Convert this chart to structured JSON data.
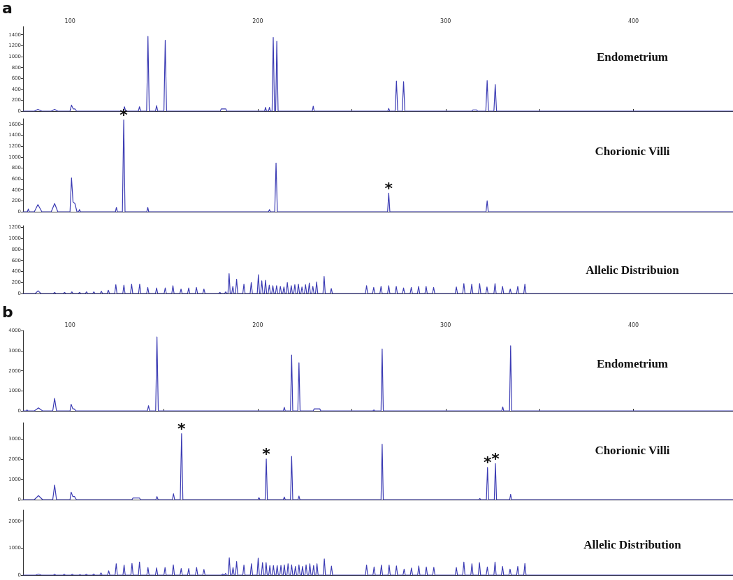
{
  "chart_data": [
    {
      "type": "line",
      "title": "Endometrium",
      "annotations": [
        "a"
      ],
      "color": "#3c3cb4",
      "marker": "none",
      "xlim": [
        75,
        453
      ],
      "xticks": [
        100,
        {
          "value": 150,
          "label": null
        },
        200,
        {
          "value": 250,
          "label": null
        },
        300,
        {
          "value": 350,
          "label": null
        },
        400
      ],
      "ylim": [
        0,
        1550
      ],
      "yticks": [
        0,
        200,
        400,
        600,
        800,
        1000,
        1200,
        1400
      ],
      "x": [
        75,
        81,
        82.9,
        85,
        90,
        91.8,
        93.5,
        100,
        100.8,
        101.7,
        102.6,
        103.5,
        128.4,
        129,
        129.6,
        136.4,
        137,
        137.6,
        140.8,
        141.5,
        142.2,
        145.5,
        146.1,
        146.7,
        150,
        150.7,
        151.4,
        180,
        180.5,
        183,
        183.5,
        203.6,
        204.1,
        204.6,
        205.7,
        206.2,
        206.7,
        207.6,
        208.2,
        208.9,
        209.5,
        210.1,
        210.8,
        229,
        229.5,
        230,
        269.2,
        269.7,
        270.2,
        273.1,
        273.8,
        274.5,
        276.9,
        277.6,
        278.3,
        314,
        314.5,
        316.5,
        317,
        321.4,
        322.1,
        322.8,
        325.7,
        326.4,
        327.1,
        453
      ],
      "values": [
        0,
        0,
        30,
        0,
        0,
        30,
        0,
        0,
        110,
        40,
        40,
        0,
        0,
        80,
        0,
        0,
        80,
        0,
        0,
        1370,
        0,
        0,
        100,
        0,
        0,
        1300,
        0,
        0,
        40,
        40,
        0,
        0,
        70,
        0,
        0,
        70,
        0,
        0,
        1350,
        0,
        0,
        1280,
        0,
        0,
        90,
        0,
        0,
        50,
        0,
        0,
        550,
        0,
        0,
        540,
        0,
        0,
        20,
        20,
        0,
        0,
        560,
        0,
        0,
        490,
        0,
        0
      ]
    },
    {
      "type": "line",
      "title": "Chorionic Villi",
      "color": "#3c3cb4",
      "marker": "none",
      "tick_labels": "y",
      "annotations": [
        {
          "text": "*",
          "x": 128.6,
          "y": 1680
        },
        {
          "text": "*",
          "x": 269.7,
          "y": 340
        }
      ],
      "xlim": [
        75,
        453
      ],
      "ylim": [
        0,
        1700
      ],
      "yticks": [
        0,
        200,
        400,
        600,
        800,
        1000,
        1200,
        1400,
        1600
      ],
      "x": [
        75,
        77.3,
        77.8,
        78.3,
        81,
        82.9,
        85,
        90,
        91.8,
        93.5,
        100,
        100.8,
        101.6,
        102.6,
        103.7,
        104.6,
        105,
        105.6,
        124.2,
        124.7,
        125.2,
        127.9,
        128.6,
        129.3,
        140.9,
        141.4,
        141.9,
        205.7,
        206.2,
        206.7,
        209,
        209.7,
        210.4,
        269.1,
        269.7,
        270.3,
        321.5,
        322.1,
        322.7,
        453
      ],
      "values": [
        0,
        0,
        50,
        0,
        0,
        130,
        0,
        0,
        150,
        0,
        0,
        620,
        180,
        150,
        0,
        0,
        40,
        0,
        0,
        80,
        0,
        0,
        1680,
        0,
        0,
        80,
        0,
        0,
        40,
        0,
        0,
        890,
        0,
        0,
        340,
        0,
        0,
        200,
        0,
        0
      ]
    },
    {
      "type": "line",
      "title": "Allelic Distribuion",
      "color": "#3c3cb4",
      "marker": "none",
      "tick_labels": "y",
      "xlim": [
        75,
        453
      ],
      "ylim": [
        0,
        1230
      ],
      "yticks": [
        0,
        200,
        400,
        600,
        800,
        1000,
        1200
      ],
      "x": [
        75,
        81.5,
        83,
        84.5,
        91.2,
        91.8,
        92.4,
        96.5,
        97.1,
        97.7,
        100.4,
        101,
        101.6,
        104.5,
        105.1,
        105.7,
        108.2,
        108.8,
        109.4,
        112.1,
        112.7,
        113.3,
        116.1,
        116.7,
        117.3,
        119.8,
        120.4,
        121,
        123.8,
        124.4,
        125,
        128.1,
        128.7,
        129.3,
        132.2,
        132.8,
        133.4,
        136.5,
        137.1,
        137.7,
        140.8,
        141.4,
        142,
        145.5,
        146.1,
        146.7,
        150.1,
        150.7,
        151.3,
        154.2,
        154.8,
        155.4,
        158.5,
        159.1,
        159.7,
        162.6,
        163.2,
        163.8,
        166.7,
        167.3,
        167.9,
        170.7,
        171.3,
        171.9,
        179.2,
        179.8,
        180.4,
        182.3,
        182.9,
        183.5,
        184.1,
        184.7,
        185.3,
        186.1,
        186.7,
        187.3,
        188.1,
        188.7,
        189.3,
        192,
        192.6,
        193.2,
        195.9,
        196.5,
        197.1,
        199.7,
        200.3,
        200.9,
        201.5,
        202.1,
        202.7,
        203.5,
        204.1,
        204.7,
        205.5,
        206.1,
        206.7,
        207.4,
        208,
        208.6,
        209.4,
        210,
        210.6,
        211.4,
        212,
        212.6,
        213.3,
        213.9,
        214.5,
        215.1,
        215.7,
        216.3,
        217.2,
        217.8,
        218.4,
        219.1,
        219.7,
        220.3,
        221,
        221.6,
        222.2,
        222.9,
        223.5,
        224.1,
        224.8,
        225.4,
        226,
        226.8,
        227.4,
        228,
        228.7,
        229.3,
        229.9,
        230.7,
        231.3,
        231.9,
        234.7,
        235.3,
        235.9,
        238.5,
        239.1,
        239.7,
        257.3,
        257.9,
        258.5,
        261.1,
        261.7,
        262.3,
        265,
        265.6,
        266.2,
        269.1,
        269.7,
        270.3,
        273.1,
        273.7,
        274.3,
        277,
        277.6,
        278.2,
        281.1,
        281.7,
        282.3,
        285,
        285.6,
        286.2,
        289,
        289.6,
        290.2,
        293,
        293.6,
        294.2,
        305.1,
        305.7,
        306.3,
        309.1,
        309.7,
        310.3,
        313.3,
        313.9,
        314.5,
        317.5,
        318.1,
        318.7,
        321.4,
        322,
        322.6,
        325.7,
        326.3,
        326.9,
        329.7,
        330.3,
        330.9,
        333.8,
        334.4,
        335,
        337.8,
        338.4,
        339,
        341.6,
        342.2,
        342.8,
        453
      ],
      "values": [
        0,
        0,
        50,
        0,
        0,
        20,
        0,
        0,
        20,
        0,
        0,
        30,
        0,
        0,
        20,
        0,
        0,
        30,
        0,
        0,
        30,
        0,
        0,
        40,
        0,
        0,
        60,
        0,
        0,
        160,
        0,
        0,
        150,
        0,
        0,
        170,
        0,
        0,
        170,
        0,
        0,
        110,
        0,
        0,
        100,
        0,
        0,
        100,
        0,
        0,
        140,
        0,
        0,
        80,
        0,
        0,
        100,
        0,
        0,
        110,
        0,
        0,
        80,
        0,
        0,
        20,
        0,
        0,
        30,
        0,
        0,
        360,
        0,
        0,
        130,
        0,
        0,
        260,
        0,
        0,
        170,
        0,
        0,
        200,
        0,
        0,
        340,
        0,
        0,
        230,
        0,
        0,
        240,
        0,
        0,
        150,
        0,
        0,
        140,
        0,
        0,
        140,
        0,
        0,
        130,
        0,
        0,
        120,
        0,
        0,
        200,
        0,
        0,
        140,
        0,
        0,
        160,
        0,
        0,
        170,
        0,
        0,
        120,
        0,
        0,
        160,
        0,
        0,
        190,
        0,
        0,
        130,
        0,
        0,
        210,
        0,
        0,
        310,
        0,
        0,
        90,
        0,
        0,
        140,
        0,
        0,
        110,
        0,
        0,
        130,
        0,
        0,
        140,
        0,
        0,
        130,
        0,
        0,
        100,
        0,
        0,
        110,
        0,
        0,
        130,
        0,
        0,
        130,
        0,
        0,
        110,
        0,
        0,
        120,
        0,
        0,
        180,
        0,
        0,
        170,
        0,
        0,
        180,
        0,
        0,
        120,
        0,
        0,
        180,
        0,
        0,
        130,
        0,
        0,
        80,
        0,
        0,
        130,
        0,
        0,
        170,
        0,
        0
      ]
    },
    {
      "type": "line",
      "title": "Endometrium",
      "annotations": [
        "b"
      ],
      "color": "#3c3cb4",
      "marker": "none",
      "xlim": [
        75,
        453
      ],
      "xticks": [
        100,
        {
          "value": 150,
          "label": null
        },
        200,
        {
          "value": 250,
          "label": null
        },
        300,
        {
          "value": 350,
          "label": null
        },
        400
      ],
      "ylim": [
        0,
        4000
      ],
      "yticks": [
        0,
        1000,
        2000,
        3000,
        4000
      ],
      "x": [
        75,
        76.6,
        77.1,
        77.6,
        81,
        83.2,
        85.4,
        90.8,
        91.8,
        92.8,
        100,
        100.6,
        101.5,
        102.2,
        103.2,
        141.2,
        141.8,
        142.4,
        145.6,
        146.3,
        147,
        213.6,
        214.1,
        214.6,
        217.4,
        218,
        218.6,
        221.3,
        221.9,
        222.5,
        229.5,
        230,
        233,
        233.5,
        261.3,
        261.8,
        262.3,
        265.6,
        266.2,
        266.8,
        329.9,
        330.4,
        330.9,
        334,
        334.6,
        335.2,
        453
      ],
      "values": [
        0,
        0,
        50,
        0,
        0,
        150,
        0,
        0,
        620,
        0,
        0,
        330,
        100,
        100,
        0,
        0,
        260,
        0,
        0,
        3680,
        0,
        0,
        180,
        0,
        0,
        2780,
        0,
        0,
        2400,
        0,
        0,
        100,
        100,
        0,
        0,
        50,
        0,
        0,
        3080,
        0,
        0,
        200,
        0,
        0,
        3240,
        0,
        0
      ]
    },
    {
      "type": "line",
      "title": "Chorionic Villi",
      "color": "#3c3cb4",
      "marker": "none",
      "tick_labels": "y",
      "annotations": [
        {
          "text": "*",
          "x": 159.4,
          "y": 3260
        },
        {
          "text": "*",
          "x": 204.5,
          "y": 2010
        },
        {
          "text": "*",
          "x": 322.3,
          "y": 1590
        },
        {
          "text": "*",
          "x": 326.5,
          "y": 1780
        }
      ],
      "xlim": [
        75,
        453
      ],
      "ylim": [
        0,
        3800
      ],
      "yticks": [
        0,
        1000,
        2000,
        3000
      ],
      "x": [
        75,
        81,
        83.2,
        85.4,
        90.8,
        91.8,
        92.8,
        100,
        100.6,
        101.5,
        102.4,
        103.4,
        133,
        133.5,
        137,
        137.5,
        145.7,
        146.3,
        146.9,
        154.5,
        155.1,
        155.7,
        158.7,
        159.4,
        160.1,
        200.1,
        200.6,
        201.1,
        203.9,
        204.5,
        205.1,
        213.6,
        214.1,
        214.6,
        217.4,
        218,
        218.6,
        221.4,
        221.9,
        222.4,
        265.6,
        266.2,
        266.8,
        317.7,
        318.2,
        318.7,
        321.7,
        322.3,
        322.9,
        325.9,
        326.5,
        327.1,
        334.1,
        334.6,
        335.1,
        453
      ],
      "values": [
        0,
        0,
        200,
        0,
        0,
        720,
        0,
        0,
        370,
        150,
        150,
        0,
        0,
        80,
        80,
        0,
        0,
        150,
        0,
        0,
        290,
        0,
        0,
        3260,
        0,
        0,
        100,
        0,
        0,
        2010,
        0,
        0,
        130,
        0,
        0,
        2140,
        0,
        0,
        180,
        0,
        0,
        2740,
        0,
        0,
        60,
        0,
        0,
        1590,
        0,
        0,
        1780,
        0,
        0,
        260,
        0,
        0
      ]
    },
    {
      "type": "line",
      "title": "Allelic Distribution",
      "color": "#3c3cb4",
      "marker": "none",
      "tick_labels": "y",
      "xlim": [
        75,
        453
      ],
      "ylim": [
        0,
        2400
      ],
      "yticks": [
        0,
        1000,
        2000
      ],
      "x": [
        75,
        81.7,
        83.2,
        84.7,
        91.2,
        91.8,
        92.4,
        96.3,
        96.9,
        97.5,
        100.6,
        101.2,
        101.8,
        104.7,
        105.3,
        105.9,
        108.1,
        108.7,
        109.3,
        112,
        112.6,
        113.2,
        115.9,
        116.5,
        117.1,
        120,
        120.6,
        121.2,
        124,
        124.6,
        125.2,
        128.2,
        128.8,
        129.4,
        132.4,
        133,
        133.6,
        136.4,
        137,
        137.6,
        140.9,
        141.5,
        142.1,
        145.5,
        146.1,
        146.7,
        150,
        150.6,
        151.2,
        154.4,
        155,
        155.6,
        158.6,
        159.2,
        159.8,
        162.6,
        163.2,
        163.8,
        166.8,
        167.4,
        168,
        170.7,
        171.3,
        171.9,
        180.7,
        181.3,
        181.9,
        182.3,
        182.8,
        183.3,
        184.2,
        184.8,
        185.4,
        186.2,
        186.8,
        187.4,
        188.1,
        188.7,
        189.3,
        192,
        192.6,
        193.2,
        196,
        196.6,
        197.2,
        199.6,
        200.2,
        200.8,
        201.9,
        202.5,
        203.1,
        203.8,
        204.4,
        205,
        205.8,
        206.4,
        207,
        207.7,
        208.3,
        208.9,
        209.7,
        210.3,
        210.9,
        211.7,
        212.3,
        212.9,
        213.5,
        214.1,
        214.7,
        215.5,
        216.1,
        216.7,
        217.4,
        218,
        218.6,
        219.4,
        220,
        220.6,
        221.3,
        221.9,
        222.5,
        223.2,
        223.8,
        224.4,
        225.1,
        225.7,
        226.3,
        227.1,
        227.7,
        228.3,
        229.1,
        229.7,
        230.3,
        230.9,
        231.5,
        232.1,
        234.8,
        235.4,
        236,
        238.6,
        239.2,
        239.8,
        257.3,
        257.9,
        258.5,
        261.3,
        261.9,
        262.5,
        265.2,
        265.8,
        266.4,
        269.3,
        269.9,
        270.5,
        273.2,
        273.8,
        274.4,
        277.3,
        277.9,
        278.5,
        281.2,
        281.8,
        282.4,
        285.1,
        285.7,
        286.3,
        289.1,
        289.7,
        290.3,
        293.1,
        293.7,
        294.3,
        305.1,
        305.7,
        306.3,
        309.1,
        309.7,
        310.3,
        313.4,
        314,
        314.6,
        317.4,
        318,
        318.6,
        321.6,
        322.2,
        322.8,
        325.7,
        326.3,
        326.9,
        329.7,
        330.3,
        330.9,
        333.7,
        334.3,
        334.9,
        337.8,
        338.4,
        339,
        341.6,
        342.2,
        342.8,
        453
      ],
      "values": [
        0,
        0,
        40,
        0,
        0,
        30,
        0,
        0,
        30,
        0,
        0,
        30,
        0,
        0,
        20,
        0,
        0,
        30,
        0,
        0,
        40,
        0,
        0,
        80,
        0,
        0,
        160,
        0,
        0,
        420,
        0,
        0,
        370,
        0,
        0,
        430,
        0,
        0,
        480,
        0,
        0,
        280,
        0,
        0,
        270,
        0,
        0,
        280,
        0,
        0,
        380,
        0,
        0,
        240,
        0,
        0,
        240,
        0,
        0,
        280,
        0,
        0,
        210,
        0,
        0,
        40,
        0,
        0,
        60,
        0,
        0,
        640,
        0,
        0,
        280,
        0,
        0,
        500,
        0,
        0,
        370,
        0,
        0,
        420,
        0,
        0,
        630,
        0,
        0,
        460,
        0,
        0,
        460,
        0,
        0,
        350,
        0,
        0,
        350,
        0,
        0,
        350,
        0,
        0,
        360,
        0,
        0,
        380,
        0,
        0,
        420,
        0,
        0,
        380,
        0,
        0,
        320,
        0,
        0,
        380,
        0,
        0,
        320,
        0,
        0,
        380,
        0,
        0,
        420,
        0,
        0,
        350,
        0,
        0,
        420,
        0,
        0,
        600,
        0,
        0,
        330,
        0,
        0,
        370,
        0,
        0,
        300,
        0,
        0,
        370,
        0,
        0,
        370,
        0,
        0,
        340,
        0,
        0,
        220,
        0,
        0,
        260,
        0,
        0,
        340,
        0,
        0,
        300,
        0,
        0,
        290,
        0,
        0,
        280,
        0,
        0,
        480,
        0,
        0,
        420,
        0,
        0,
        460,
        0,
        0,
        300,
        0,
        0,
        480,
        0,
        0,
        320,
        0,
        0,
        220,
        0,
        0,
        320,
        0,
        0,
        430,
        0,
        0
      ]
    }
  ]
}
